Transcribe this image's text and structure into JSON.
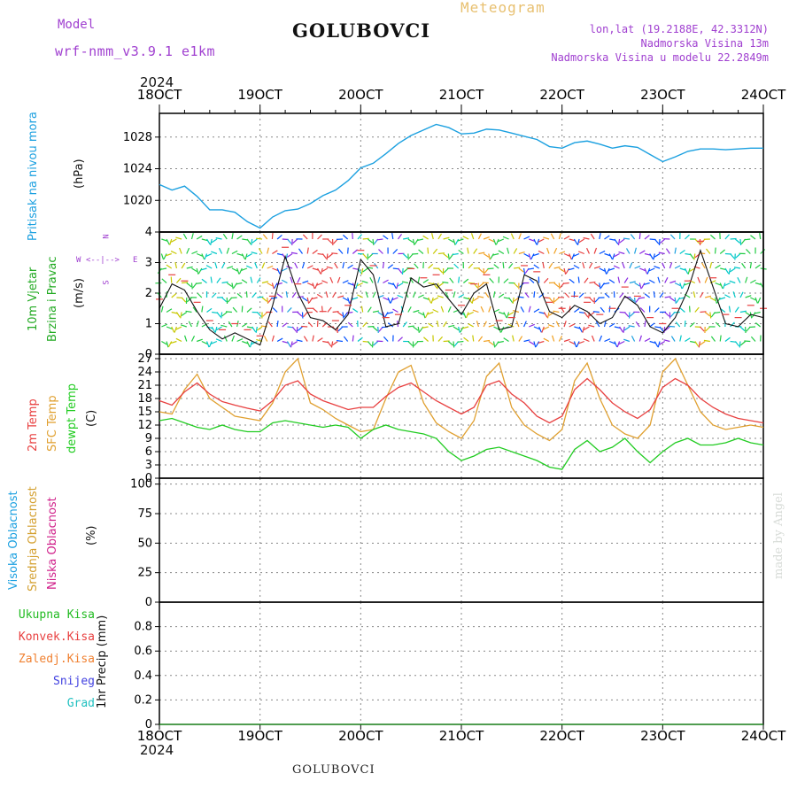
{
  "header": {
    "model_label": "Model",
    "model_name": "wrf-nmm_v3.9.1  e1km",
    "station": "GOLUBOVCI",
    "meteogram": "Meteogram",
    "lonlat": "lon,lat (19.2188E, 42.3312N)",
    "altitude": "Nadmorska Visina 13m",
    "altitude_model": "Nadmorska Visina u modelu 22.2849m",
    "year_top": "2024",
    "year_bottom": "2024",
    "footer_station": "GOLUBOVCI",
    "credit": "made by Angel"
  },
  "colors": {
    "pressure": "#1ba0e0",
    "wind": "#22aa22",
    "temp2m": "#e84040",
    "sfc": "#e0a030",
    "dewpt": "#22cc22",
    "high_cloud": "#1ba0e0",
    "mid_cloud": "#d4a030",
    "low_cloud": "#d0208a",
    "total_precip": "#22bb22",
    "conv_precip": "#e84040",
    "freezing": "#f08030",
    "snow": "#4040e0",
    "hail": "#20c0c0",
    "purple_text": "#a040d0"
  },
  "time_axis": {
    "labels": [
      "18OCT",
      "19OCT",
      "20OCT",
      "21OCT",
      "22OCT",
      "23OCT",
      "24OCT"
    ],
    "start": "2024-10-18T00:00",
    "end": "2024-10-24T00:00"
  },
  "panels": {
    "pressure": {
      "label1": "Pritisak na nivou mora",
      "unit": "(hPa)",
      "ticks": [
        "1020",
        "1024",
        "1028"
      ]
    },
    "wind": {
      "label1": "10m Vjetar",
      "label2": "Brzina i Pravac",
      "unit": "(m/s)",
      "ticks": [
        "0",
        "1",
        "2",
        "3",
        "4"
      ],
      "compass": {
        "n": "N",
        "s": "S",
        "w": "W",
        "e": "E",
        "dash": "<--|-->"
      }
    },
    "temp": {
      "label1": "2m Temp",
      "label2": "SFC Temp",
      "label3": "dewpt Temp",
      "unit": "(C)",
      "ticks": [
        "0",
        "3",
        "6",
        "9",
        "12",
        "15",
        "18",
        "21",
        "24",
        "27"
      ]
    },
    "cloud": {
      "label1": "Visoka Oblacnost",
      "label2": "Srednja Oblacnost",
      "label3": "Niska Oblacnost",
      "unit": "(%)",
      "ticks": [
        "0",
        "25",
        "50",
        "75",
        "100"
      ]
    },
    "precip": {
      "legend": [
        "Ukupna Kisa",
        "Konvek.Kisa",
        "Zaledj.Kisa",
        "Snijeg",
        "Grad"
      ],
      "unit": "1hr Precip (mm)",
      "ticks": [
        "0",
        "0.2",
        "0.4",
        "0.6",
        "0.8"
      ]
    }
  },
  "chart_data": [
    {
      "type": "line",
      "ylabel": "(hPa)",
      "ylim": [
        1016,
        1031
      ],
      "x_hours": [
        0,
        3,
        6,
        9,
        12,
        15,
        18,
        21,
        24,
        27,
        30,
        33,
        36,
        39,
        42,
        45,
        48,
        51,
        54,
        57,
        60,
        63,
        66,
        69,
        72,
        75,
        78,
        81,
        84,
        87,
        90,
        93,
        96,
        99,
        102,
        105,
        108,
        111,
        114,
        117,
        120,
        123,
        126,
        129,
        132,
        135,
        138,
        141,
        144
      ],
      "series": [
        {
          "values": [
            1022.0,
            1021.3,
            1021.8,
            1020.5,
            1018.8,
            1018.8,
            1018.5,
            1017.3,
            1016.5,
            1017.9,
            1018.7,
            1018.9,
            1019.6,
            1020.6,
            1021.3,
            1022.5,
            1024.1,
            1024.7,
            1025.9,
            1027.2,
            1028.2,
            1028.9,
            1029.6,
            1029.2,
            1028.4,
            1028.5,
            1029.0,
            1028.9,
            1028.5,
            1028.1,
            1027.7,
            1026.8,
            1026.6,
            1027.3,
            1027.5,
            1027.1,
            1026.6,
            1026.9,
            1026.7,
            1025.8,
            1024.9,
            1025.5,
            1026.2,
            1026.5,
            1026.5,
            1026.4,
            1026.5,
            1026.6,
            1026.6
          ]
        }
      ],
      "grid": true
    },
    {
      "type": "line",
      "ylabel": "(m/s)",
      "ylim": [
        0,
        4
      ],
      "x_hours": [
        0,
        3,
        6,
        9,
        12,
        15,
        18,
        21,
        24,
        27,
        30,
        33,
        36,
        39,
        42,
        45,
        48,
        51,
        54,
        57,
        60,
        63,
        66,
        69,
        72,
        75,
        78,
        81,
        84,
        87,
        90,
        93,
        96,
        99,
        102,
        105,
        108,
        111,
        114,
        117,
        120,
        123,
        126,
        129,
        132,
        135,
        138,
        141,
        144
      ],
      "series": [
        {
          "values": [
            1.5,
            2.3,
            2.1,
            1.4,
            0.8,
            0.5,
            0.7,
            0.5,
            0.3,
            1.6,
            3.2,
            2.0,
            1.2,
            1.1,
            0.8,
            1.3,
            3.1,
            2.6,
            0.9,
            1.0,
            2.5,
            2.2,
            2.3,
            1.8,
            1.3,
            2.0,
            2.3,
            0.8,
            0.9,
            2.6,
            2.4,
            1.4,
            1.2,
            1.6,
            1.4,
            1.0,
            1.2,
            1.9,
            1.6,
            0.9,
            0.7,
            1.2,
            2.1,
            3.4,
            2.2,
            1.0,
            0.9,
            1.3,
            1.2
          ]
        }
      ],
      "grid": true
    },
    {
      "type": "line",
      "ylabel": "(C)",
      "ylim": [
        0,
        28
      ],
      "x_hours": [
        0,
        3,
        6,
        9,
        12,
        15,
        18,
        21,
        24,
        27,
        30,
        33,
        36,
        39,
        42,
        45,
        48,
        51,
        54,
        57,
        60,
        63,
        66,
        69,
        72,
        75,
        78,
        81,
        84,
        87,
        90,
        93,
        96,
        99,
        102,
        105,
        108,
        111,
        114,
        117,
        120,
        123,
        126,
        129,
        132,
        135,
        138,
        141,
        144
      ],
      "series": [
        {
          "name": "2m Temp",
          "values": [
            17.5,
            16.5,
            19.5,
            21.5,
            19.0,
            17.3,
            16.5,
            15.8,
            15.2,
            17.5,
            21.0,
            22.0,
            19.0,
            17.5,
            16.5,
            15.5,
            16.0,
            16.0,
            18.5,
            20.5,
            21.5,
            19.5,
            17.5,
            16.0,
            14.5,
            16.0,
            21.0,
            22.0,
            19.0,
            17.0,
            14.0,
            12.5,
            14.0,
            20.0,
            22.5,
            20.0,
            17.0,
            15.0,
            13.5,
            15.5,
            20.5,
            22.5,
            21.0,
            18.0,
            16.0,
            14.5,
            13.5,
            13.0,
            12.5
          ]
        },
        {
          "name": "SFC Temp",
          "values": [
            15.0,
            14.5,
            20.0,
            23.5,
            18.0,
            16.0,
            14.0,
            13.5,
            13.0,
            17.0,
            24.0,
            27.0,
            17.0,
            15.5,
            13.5,
            12.0,
            10.5,
            11.0,
            18.0,
            24.0,
            25.5,
            17.0,
            12.5,
            10.5,
            9.0,
            13.0,
            23.0,
            26.0,
            16.0,
            12.0,
            10.0,
            8.5,
            11.0,
            22.0,
            26.0,
            18.0,
            12.0,
            10.0,
            9.0,
            12.0,
            24.0,
            27.0,
            21.0,
            15.0,
            12.0,
            11.0,
            11.5,
            12.0,
            11.5
          ]
        },
        {
          "name": "dewpt Temp",
          "values": [
            13.0,
            13.5,
            12.5,
            11.5,
            11.0,
            12.0,
            11.0,
            10.5,
            10.5,
            12.5,
            13.0,
            12.5,
            12.0,
            11.5,
            12.0,
            11.5,
            9.0,
            11.0,
            12.0,
            11.0,
            10.5,
            10.0,
            9.0,
            6.0,
            4.0,
            5.0,
            6.5,
            7.0,
            6.0,
            5.0,
            4.0,
            2.5,
            2.0,
            6.5,
            8.5,
            6.0,
            7.0,
            9.0,
            6.0,
            3.5,
            6.0,
            8.0,
            9.0,
            7.5,
            7.5,
            8.0,
            9.0,
            8.0,
            7.5
          ]
        }
      ],
      "grid": true
    },
    {
      "type": "bar",
      "ylabel": "(%)",
      "ylim": [
        0,
        105
      ],
      "x_hours": [
        0,
        1,
        2,
        3,
        4,
        5,
        6,
        7,
        8,
        9,
        10,
        11,
        12,
        13,
        14,
        15,
        16,
        17,
        18,
        19,
        20,
        21,
        22,
        23,
        24,
        25,
        26,
        27,
        28,
        29,
        30,
        31,
        32,
        33,
        34,
        35,
        36,
        37,
        38,
        39,
        40,
        41,
        42,
        43,
        44,
        45,
        46,
        47,
        48,
        49,
        50,
        51,
        52,
        53,
        54,
        55,
        56,
        57,
        58,
        59,
        60,
        61,
        62,
        63,
        64,
        65,
        66,
        67,
        68,
        69,
        70,
        71,
        72,
        73,
        74,
        75,
        76,
        77,
        78,
        79,
        80,
        81,
        82,
        83,
        84,
        85,
        86,
        87,
        88,
        89,
        90,
        91,
        92,
        93,
        94,
        95,
        96,
        97,
        98,
        99,
        100,
        101,
        102,
        103,
        104,
        105,
        106,
        107,
        108,
        109,
        110,
        111,
        112,
        113,
        114,
        115,
        116,
        117,
        118,
        119,
        120,
        121,
        122,
        123,
        124,
        125,
        126,
        127,
        128,
        129,
        130,
        131,
        132,
        133,
        134,
        135,
        136,
        137,
        138,
        139,
        140,
        141,
        142,
        143,
        144
      ],
      "series": [
        {
          "name": "Visoka Oblacnost",
          "values": [
            0,
            0,
            0,
            0,
            0,
            0,
            0,
            0,
            0,
            0,
            0,
            0,
            0,
            0,
            0,
            0,
            0,
            0,
            0,
            0,
            0,
            0,
            0,
            0,
            0,
            0,
            0,
            0,
            0,
            0,
            0,
            0,
            0,
            0,
            0,
            0,
            0,
            0,
            0,
            0,
            0,
            0,
            0,
            0,
            0,
            0,
            0,
            0,
            0,
            0,
            0,
            0,
            0,
            0,
            0,
            0,
            0,
            0,
            0,
            0,
            0,
            0,
            0,
            0,
            0,
            0,
            0,
            0,
            0,
            0,
            0,
            0,
            0,
            0,
            0,
            0,
            0,
            0,
            0,
            0,
            0,
            0,
            0,
            0,
            0,
            0,
            0,
            0,
            0,
            0,
            0,
            0,
            0,
            0,
            0,
            0,
            0,
            0,
            0,
            0,
            0,
            0,
            0,
            0,
            0,
            0,
            0,
            0,
            0,
            0,
            0,
            0,
            0,
            0,
            0,
            0,
            0,
            0,
            0,
            0,
            0,
            0,
            0,
            0,
            0,
            0,
            0,
            0,
            0,
            0,
            0,
            0,
            0,
            0,
            0,
            0,
            0,
            0,
            0,
            0,
            0,
            0,
            0,
            0,
            0
          ]
        },
        {
          "name": "Srednja Oblacnost",
          "values": [
            0,
            0,
            0,
            0,
            0,
            0,
            0,
            0,
            0,
            0,
            0,
            0,
            0,
            0,
            0,
            0,
            0,
            0,
            0,
            0,
            0,
            0,
            0,
            0,
            0,
            0,
            0,
            0,
            0,
            0,
            0,
            0,
            0,
            0,
            0,
            0,
            0,
            0,
            0,
            0,
            0,
            0,
            0,
            0,
            0,
            0,
            0,
            0,
            0,
            0,
            0,
            0,
            0,
            0,
            0,
            0,
            0,
            0,
            0,
            0,
            0,
            0,
            0,
            0,
            0,
            0,
            0,
            0,
            0,
            0,
            0,
            0,
            0,
            0,
            0,
            0,
            0,
            0,
            0,
            0,
            0,
            0,
            0,
            0,
            0,
            0,
            0,
            0,
            0,
            0,
            0,
            0,
            0,
            0,
            0,
            0,
            0,
            0,
            0,
            0,
            0,
            0,
            0,
            0,
            0,
            0,
            0,
            0,
            0,
            0,
            0,
            0,
            0,
            0,
            0,
            0,
            0,
            0,
            0,
            0,
            0,
            0,
            0,
            0,
            0,
            0,
            0,
            0,
            0,
            0,
            0,
            0,
            0,
            0,
            0,
            0,
            0,
            0,
            0,
            0,
            0,
            0,
            0,
            0,
            0
          ]
        },
        {
          "name": "Niska Oblacnost",
          "values": [
            0,
            0,
            0,
            0,
            0,
            0,
            0,
            0,
            0,
            0,
            0,
            0,
            0,
            0,
            0,
            0,
            0,
            0,
            0,
            0,
            0,
            0,
            0,
            0,
            0,
            0,
            0,
            0,
            0,
            0,
            0,
            0,
            0,
            0,
            0,
            0,
            0,
            0,
            0,
            0,
            0,
            0,
            0,
            0,
            0,
            0,
            0,
            0,
            0,
            0,
            0,
            0,
            0,
            0,
            0,
            0,
            0,
            0,
            0,
            0,
            0,
            0,
            0,
            0,
            0,
            0,
            0,
            0,
            0,
            0,
            0,
            0,
            0,
            0,
            0,
            0,
            0,
            0,
            0,
            0,
            0,
            0,
            0,
            0,
            0,
            0,
            0,
            0,
            0,
            0,
            0,
            0,
            0,
            0,
            0,
            0,
            0,
            0,
            0,
            0,
            0,
            0,
            0,
            0,
            0,
            0,
            0,
            0,
            0,
            0,
            0,
            0,
            0,
            0,
            0,
            0,
            0,
            0,
            0,
            0,
            0,
            0,
            0,
            0,
            0,
            0,
            0,
            0,
            0,
            0,
            0,
            0,
            0,
            0,
            0,
            0,
            0,
            0,
            0,
            0,
            0,
            0,
            0,
            0,
            0
          ]
        }
      ],
      "grid": true
    },
    {
      "type": "bar",
      "ylabel": "1hr Precip (mm)",
      "ylim": [
        0,
        1.0
      ],
      "series": [
        {
          "name": "Ukupna Kisa",
          "values": [
            0
          ]
        }
      ],
      "grid": true
    }
  ]
}
